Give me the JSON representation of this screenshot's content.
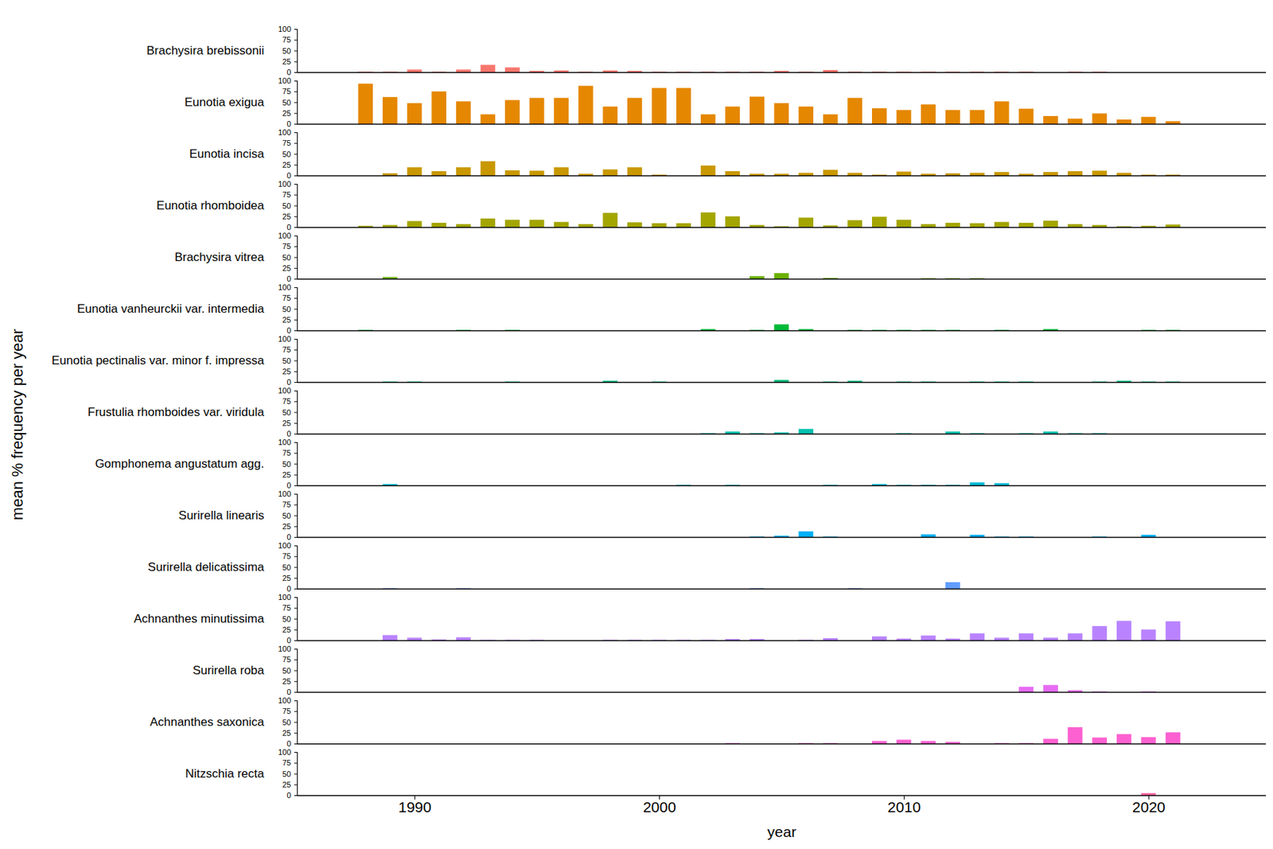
{
  "chart_data": {
    "type": "bar",
    "xlabel": "year",
    "ylabel": "mean % frequency per year",
    "x": [
      1988,
      1989,
      1990,
      1991,
      1992,
      1993,
      1994,
      1995,
      1996,
      1997,
      1998,
      1999,
      2000,
      2001,
      2002,
      2003,
      2004,
      2005,
      2006,
      2007,
      2008,
      2009,
      2010,
      2011,
      2012,
      2013,
      2014,
      2015,
      2016,
      2017,
      2018,
      2019,
      2020,
      2021
    ],
    "xlim": [
      1985.2,
      2024.8
    ],
    "xticks": [
      1990,
      2000,
      2010,
      2020
    ],
    "ylim": [
      0,
      100
    ],
    "yticks": [
      0,
      25,
      50,
      75,
      100
    ],
    "series": [
      {
        "name": "Brachysira brebissonii",
        "color": "#F8766D",
        "values": [
          1,
          1,
          6,
          1,
          6,
          17,
          11,
          3,
          4,
          1,
          4,
          3,
          1,
          1,
          1,
          1,
          1,
          3,
          1,
          5,
          1,
          1,
          1,
          1,
          1,
          1,
          1,
          1,
          null,
          1,
          1,
          null,
          null,
          null
        ]
      },
      {
        "name": "Eunotia exigua",
        "color": "#E58700",
        "values": [
          93,
          62,
          48,
          75,
          52,
          22,
          55,
          60,
          60,
          88,
          40,
          60,
          83,
          83,
          22,
          40,
          63,
          48,
          40,
          22,
          60,
          36,
          32,
          45,
          32,
          32,
          52,
          35,
          18,
          12,
          24,
          10,
          16,
          6
        ]
      },
      {
        "name": "Eunotia incisa",
        "color": "#C99800",
        "values": [
          null,
          5,
          19,
          10,
          19,
          33,
          12,
          11,
          19,
          4,
          14,
          19,
          2,
          null,
          23,
          10,
          4,
          4,
          6,
          13,
          6,
          2,
          9,
          4,
          5,
          6,
          8,
          4,
          8,
          10,
          11,
          6,
          2,
          2
        ]
      },
      {
        "name": "Eunotia rhomboidea",
        "color": "#A3A500",
        "values": [
          3,
          5,
          14,
          10,
          7,
          20,
          17,
          17,
          12,
          7,
          33,
          11,
          9,
          9,
          34,
          25,
          5,
          2,
          22,
          4,
          16,
          24,
          17,
          7,
          10,
          9,
          12,
          10,
          15,
          7,
          5,
          2,
          3,
          6
        ]
      },
      {
        "name": "Brachysira vitrea",
        "color": "#6BB100",
        "values": [
          null,
          4,
          null,
          null,
          null,
          null,
          null,
          null,
          null,
          null,
          null,
          null,
          null,
          null,
          null,
          null,
          6,
          13,
          null,
          2,
          null,
          null,
          null,
          1,
          1,
          1,
          null,
          null,
          null,
          null,
          null,
          null,
          null,
          null
        ]
      },
      {
        "name": "Eunotia vanheurckii var. intermedia",
        "color": "#00BA38",
        "values": [
          1,
          null,
          null,
          null,
          1,
          null,
          1,
          null,
          null,
          null,
          null,
          null,
          null,
          null,
          3,
          null,
          1,
          14,
          3,
          null,
          1,
          1,
          1,
          1,
          1,
          null,
          1,
          null,
          3,
          null,
          null,
          null,
          1,
          1
        ]
      },
      {
        "name": "Eunotia pectinalis var. minor f. impressa",
        "color": "#00BF7D",
        "values": [
          null,
          1,
          1,
          null,
          null,
          null,
          1,
          null,
          null,
          null,
          3,
          null,
          1,
          null,
          null,
          null,
          null,
          5,
          null,
          1,
          3,
          null,
          1,
          1,
          null,
          1,
          1,
          1,
          null,
          null,
          1,
          3,
          1,
          1
        ]
      },
      {
        "name": "Frustulia rhomboides var. viridula",
        "color": "#00C0AF",
        "values": [
          null,
          null,
          null,
          null,
          null,
          null,
          null,
          null,
          null,
          null,
          null,
          null,
          null,
          null,
          1,
          5,
          1,
          3,
          11,
          null,
          null,
          null,
          1,
          null,
          5,
          1,
          null,
          1,
          5,
          1,
          1,
          null,
          null,
          null
        ]
      },
      {
        "name": "Gomphonema angustatum agg.",
        "color": "#00BCD8",
        "values": [
          null,
          3,
          null,
          null,
          null,
          null,
          null,
          null,
          null,
          null,
          null,
          null,
          null,
          1,
          null,
          1,
          null,
          null,
          null,
          1,
          null,
          3,
          1,
          1,
          1,
          7,
          5,
          null,
          null,
          null,
          null,
          null,
          null,
          null
        ]
      },
      {
        "name": "Surirella linearis",
        "color": "#00B0F6",
        "values": [
          null,
          null,
          null,
          null,
          null,
          null,
          null,
          null,
          null,
          null,
          null,
          null,
          null,
          null,
          null,
          null,
          1,
          3,
          13,
          1,
          null,
          null,
          null,
          6,
          null,
          5,
          1,
          1,
          null,
          null,
          1,
          null,
          5,
          null
        ]
      },
      {
        "name": "Surirella delicatissima",
        "color": "#619CFF",
        "values": [
          null,
          1,
          null,
          null,
          1,
          null,
          null,
          null,
          null,
          null,
          null,
          null,
          null,
          null,
          null,
          null,
          1,
          null,
          null,
          null,
          1,
          null,
          null,
          null,
          15,
          null,
          null,
          null,
          null,
          null,
          null,
          null,
          null,
          null
        ]
      },
      {
        "name": "Achnanthes minutissima",
        "color": "#B983FF",
        "values": [
          null,
          12,
          6,
          2,
          7,
          1,
          1,
          1,
          null,
          null,
          1,
          1,
          1,
          1,
          1,
          3,
          3,
          null,
          1,
          5,
          null,
          9,
          4,
          11,
          4,
          16,
          6,
          16,
          6,
          16,
          33,
          45,
          25,
          44
        ]
      },
      {
        "name": "Surirella roba",
        "color": "#E76BF3",
        "values": [
          null,
          null,
          null,
          null,
          null,
          null,
          null,
          null,
          null,
          null,
          null,
          null,
          null,
          null,
          null,
          null,
          null,
          null,
          null,
          null,
          null,
          null,
          null,
          null,
          null,
          null,
          null,
          12,
          16,
          4,
          1,
          null,
          1,
          null
        ]
      },
      {
        "name": "Achnanthes saxonica",
        "color": "#FD61D1",
        "values": [
          null,
          null,
          null,
          null,
          null,
          null,
          null,
          null,
          null,
          null,
          null,
          null,
          null,
          null,
          null,
          1,
          null,
          null,
          1,
          1,
          null,
          6,
          9,
          6,
          4,
          null,
          1,
          1,
          11,
          38,
          14,
          22,
          15,
          26
        ]
      },
      {
        "name": "Nitzschia recta",
        "color": "#FF67A4",
        "values": [
          null,
          null,
          null,
          null,
          null,
          null,
          null,
          null,
          null,
          null,
          null,
          null,
          null,
          null,
          null,
          null,
          null,
          null,
          null,
          null,
          null,
          null,
          null,
          null,
          null,
          null,
          null,
          null,
          null,
          null,
          null,
          null,
          5,
          null
        ]
      }
    ]
  }
}
